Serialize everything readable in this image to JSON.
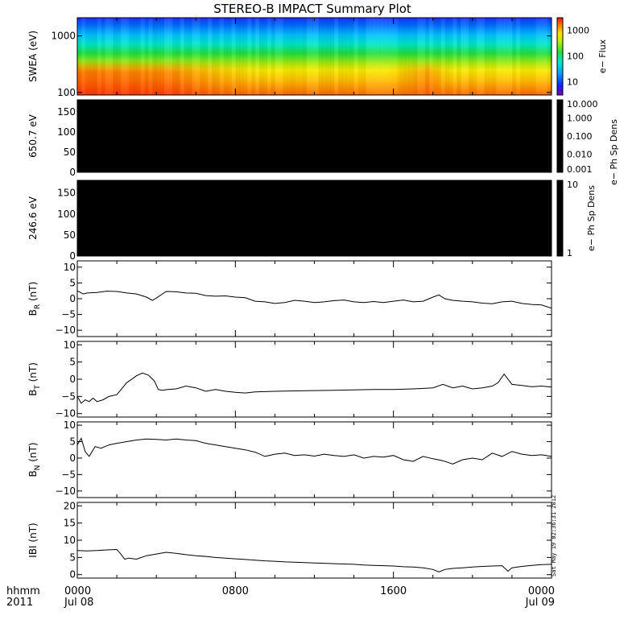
{
  "title": "STEREO-B IMPACT Summary Plot",
  "footer": {
    "left_line1": "hhmm",
    "left_line2": "2011",
    "ticks": [
      {
        "time": "0000",
        "date": "Jul 08"
      },
      {
        "time": "0800",
        "date": ""
      },
      {
        "time": "1600",
        "date": ""
      },
      {
        "time": "0000",
        "date": "Jul 09"
      }
    ]
  },
  "timestamp": "Sat May 19 02:36:31 2012",
  "chart_data": [
    {
      "type": "heatmap",
      "id": "swea",
      "ylabel": "SWEA (eV)",
      "yscale": "log",
      "ylim": [
        90,
        2100
      ],
      "yticks": [
        {
          "v": 1000,
          "label": "1000"
        },
        {
          "v": 100,
          "label": "100"
        }
      ],
      "colorbar": {
        "label": "e− Flux",
        "scale": "log",
        "range": [
          3,
          3000
        ],
        "ticks": [
          {
            "v": 1000,
            "label": "1000"
          },
          {
            "v": 100,
            "label": "100"
          },
          {
            "v": 10,
            "label": "10"
          }
        ]
      }
    },
    {
      "type": "heatmap",
      "id": "pad650",
      "ylabel": "650.7 eV",
      "ylim": [
        0,
        180
      ],
      "yticks": [
        {
          "v": 150,
          "label": "150"
        },
        {
          "v": 100,
          "label": "100"
        },
        {
          "v": 50,
          "label": "50"
        },
        {
          "v": 0,
          "label": "0"
        }
      ],
      "fill": "#000000",
      "colorbar": {
        "label": "e− Ph Sp Dens",
        "scale": "log",
        "range": [
          0.001,
          10
        ],
        "ticks": [
          {
            "v": 10,
            "label": "10.000"
          },
          {
            "v": 1,
            "label": "1.000"
          },
          {
            "v": 0.1,
            "label": "0.100"
          },
          {
            "v": 0.01,
            "label": "0.010"
          },
          {
            "v": 0.001,
            "label": "0.001"
          }
        ]
      }
    },
    {
      "type": "heatmap",
      "id": "pad246",
      "ylabel": "246.6 eV",
      "ylim": [
        0,
        180
      ],
      "yticks": [
        {
          "v": 150,
          "label": "150"
        },
        {
          "v": 100,
          "label": "100"
        },
        {
          "v": 50,
          "label": "50"
        },
        {
          "v": 0,
          "label": "0"
        }
      ],
      "fill": "#000000",
      "colorbar": {
        "label": "e− Ph Sp Dens",
        "scale": "log",
        "range": [
          1,
          10
        ],
        "ticks": [
          {
            "v": 10,
            "label": "10"
          },
          {
            "v": 1,
            "label": "1"
          }
        ]
      }
    },
    {
      "type": "line",
      "id": "br",
      "ylabel": "B",
      "ysub": "R",
      "yunit": " (nT)",
      "ylim": [
        -12,
        12
      ],
      "yticks": [
        {
          "v": 10,
          "label": "10"
        },
        {
          "v": 5,
          "label": "5"
        },
        {
          "v": 0,
          "label": "0"
        },
        {
          "v": -5,
          "label": "−5"
        },
        {
          "v": -10,
          "label": "−10"
        }
      ],
      "x": [
        0,
        0.3,
        0.5,
        1,
        1.5,
        2,
        2.5,
        3,
        3.5,
        3.8,
        4,
        4.5,
        5,
        5.5,
        6,
        6.5,
        7,
        7.5,
        8,
        8.5,
        9,
        9.5,
        10,
        10.5,
        11,
        11.5,
        12,
        12.5,
        13,
        13.5,
        14,
        14.5,
        15,
        15.5,
        16,
        16.5,
        17,
        17.5,
        18,
        18.3,
        18.6,
        19,
        19.5,
        20,
        20.5,
        21,
        21.5,
        22,
        22.5,
        23,
        23.5,
        24
      ],
      "y": [
        2.5,
        1.5,
        1.8,
        2.0,
        2.4,
        2.3,
        1.8,
        1.5,
        0.5,
        -0.5,
        0.2,
        2.3,
        2.2,
        1.8,
        1.7,
        1.0,
        0.8,
        0.9,
        0.5,
        0.3,
        -0.8,
        -1.0,
        -1.5,
        -1.2,
        -0.5,
        -0.8,
        -1.2,
        -1.0,
        -0.6,
        -0.4,
        -1.0,
        -1.2,
        -0.9,
        -1.2,
        -0.8,
        -0.4,
        -1.0,
        -0.8,
        0.5,
        1.2,
        0.0,
        -0.5,
        -0.8,
        -1.0,
        -1.4,
        -1.6,
        -1.0,
        -0.8,
        -1.5,
        -1.8,
        -2.0,
        -3.0
      ]
    },
    {
      "type": "line",
      "id": "bt",
      "ylabel": "B",
      "ysub": "T",
      "yunit": " (nT)",
      "ylim": [
        -11,
        11
      ],
      "yticks": [
        {
          "v": 10,
          "label": "10"
        },
        {
          "v": 5,
          "label": "5"
        },
        {
          "v": 0,
          "label": "0"
        },
        {
          "v": -5,
          "label": "−5"
        },
        {
          "v": -10,
          "label": "−10"
        }
      ],
      "x": [
        0,
        0.2,
        0.4,
        0.6,
        0.8,
        1,
        1.3,
        1.6,
        2,
        2.5,
        3,
        3.3,
        3.6,
        3.9,
        4.1,
        4.3,
        4.6,
        5,
        5.5,
        6,
        6.5,
        7,
        7.5,
        8,
        8.5,
        9,
        10,
        11,
        12,
        13,
        14,
        15,
        16,
        17,
        18,
        18.5,
        19,
        19.5,
        20,
        20.5,
        21,
        21.3,
        21.6,
        22,
        22.5,
        23,
        23.5,
        24
      ],
      "y": [
        -5.0,
        -7.0,
        -6.0,
        -6.5,
        -5.5,
        -6.5,
        -6.0,
        -5.0,
        -4.5,
        -1.0,
        1.0,
        1.8,
        1.2,
        -0.5,
        -3.0,
        -3.2,
        -3.0,
        -2.8,
        -2.0,
        -2.5,
        -3.5,
        -3.0,
        -3.5,
        -3.8,
        -4.0,
        -3.7,
        -3.5,
        -3.4,
        -3.3,
        -3.2,
        -3.1,
        -3.0,
        -3.0,
        -2.8,
        -2.5,
        -1.5,
        -2.5,
        -2.0,
        -2.8,
        -2.5,
        -2.0,
        -1.0,
        1.5,
        -1.5,
        -1.8,
        -2.2,
        -2.0,
        -2.3
      ]
    },
    {
      "type": "line",
      "id": "bn",
      "ylabel": "B",
      "ysub": "N",
      "yunit": " (nT)",
      "ylim": [
        -12,
        11
      ],
      "yticks": [
        {
          "v": 10,
          "label": "10"
        },
        {
          "v": 5,
          "label": "5"
        },
        {
          "v": 0,
          "label": "0"
        },
        {
          "v": -5,
          "label": "−5"
        },
        {
          "v": -10,
          "label": "−10"
        }
      ],
      "x": [
        0,
        0.2,
        0.4,
        0.6,
        0.9,
        1.2,
        1.6,
        2,
        2.5,
        3,
        3.5,
        4,
        4.5,
        5,
        5.5,
        6,
        6.5,
        7,
        7.5,
        8,
        8.5,
        9,
        9.5,
        10,
        10.5,
        11,
        11.5,
        12,
        12.5,
        13,
        13.5,
        14,
        14.5,
        15,
        15.5,
        16,
        16.5,
        17,
        17.5,
        18,
        18.5,
        19,
        19.5,
        20,
        20.5,
        21,
        21.5,
        22,
        22.5,
        23,
        23.5,
        24
      ],
      "y": [
        4.0,
        6.0,
        2.0,
        0.5,
        3.5,
        3.0,
        4.0,
        4.5,
        5.0,
        5.5,
        5.8,
        5.7,
        5.5,
        5.8,
        5.5,
        5.3,
        4.5,
        4.0,
        3.5,
        3.0,
        2.5,
        1.8,
        0.5,
        1.2,
        1.5,
        0.8,
        1.0,
        0.6,
        1.2,
        0.8,
        0.5,
        1.0,
        0.0,
        0.5,
        0.3,
        0.8,
        -0.5,
        -1.0,
        0.5,
        -0.2,
        -0.8,
        -1.8,
        -0.5,
        0.0,
        -0.5,
        1.5,
        0.5,
        2.0,
        1.2,
        0.8,
        1.0,
        0.5
      ]
    },
    {
      "type": "line",
      "id": "bmag",
      "ylabel": "IBI",
      "ysub": "",
      "yunit": " (nT)",
      "ylim": [
        -1,
        21
      ],
      "yticks": [
        {
          "v": 20,
          "label": "20"
        },
        {
          "v": 15,
          "label": "15"
        },
        {
          "v": 10,
          "label": "10"
        },
        {
          "v": 5,
          "label": "5"
        },
        {
          "v": 0,
          "label": "0"
        }
      ],
      "x": [
        0,
        0.5,
        1,
        1.5,
        2,
        2.2,
        2.4,
        2.6,
        3,
        3.5,
        4,
        4.5,
        5,
        5.5,
        6,
        6.5,
        7,
        7.5,
        8,
        8.5,
        9,
        9.5,
        10,
        10.5,
        11,
        11.5,
        12,
        12.5,
        13,
        13.5,
        14,
        14.5,
        15,
        15.5,
        16,
        16.5,
        17,
        17.5,
        18,
        18.3,
        18.6,
        19,
        19.5,
        20,
        20.5,
        21,
        21.5,
        21.8,
        22,
        22.5,
        23,
        23.5,
        24
      ],
      "y": [
        7.0,
        6.9,
        7.0,
        7.2,
        7.3,
        6.0,
        4.5,
        4.8,
        4.5,
        5.5,
        6.0,
        6.5,
        6.2,
        5.8,
        5.5,
        5.3,
        5.0,
        4.8,
        4.6,
        4.4,
        4.2,
        4.0,
        3.9,
        3.7,
        3.6,
        3.5,
        3.4,
        3.3,
        3.2,
        3.1,
        3.0,
        2.8,
        2.7,
        2.6,
        2.5,
        2.3,
        2.2,
        2.0,
        1.5,
        0.8,
        1.5,
        1.8,
        2.0,
        2.2,
        2.4,
        2.5,
        2.6,
        1.0,
        2.0,
        2.4,
        2.7,
        2.9,
        3.0
      ]
    }
  ]
}
